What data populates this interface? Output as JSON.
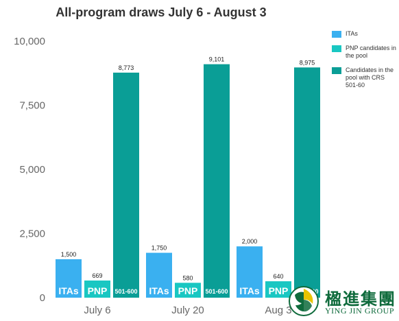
{
  "chart_data": {
    "type": "bar",
    "title": "All-program draws July 6 - August 3",
    "categories": [
      "July 6",
      "July 20",
      "Aug 3"
    ],
    "series": [
      {
        "name": "ITAs",
        "short": "ITAs",
        "color": "#3ab0f0",
        "values": [
          1500,
          1750,
          2000
        ],
        "labels": [
          "1,500",
          "1,750",
          "2,000"
        ]
      },
      {
        "name": "PNP candidates in the pool",
        "short": "PNP",
        "color": "#19c7c2",
        "values": [
          669,
          580,
          640
        ],
        "labels": [
          "669",
          "580",
          "640"
        ]
      },
      {
        "name": "Candidates in the pool with CRS 501-60",
        "short": "501-600",
        "color": "#0a9e96",
        "values": [
          8773,
          9101,
          8975
        ],
        "labels": [
          "8,773",
          "9,101",
          "8,975"
        ]
      }
    ],
    "ylim": [
      0,
      10000
    ],
    "yticks": [
      0,
      2500,
      5000,
      7500,
      10000
    ],
    "ytick_labels": [
      "0",
      "2,500",
      "5,000",
      "7,500",
      "10,000"
    ],
    "grid": false,
    "legend": "right"
  },
  "logo": {
    "cn": "楹進集團",
    "en": "YING JIN GROUP",
    "colors": {
      "primary": "#0f6b3c",
      "accent": "#e8c400"
    }
  }
}
